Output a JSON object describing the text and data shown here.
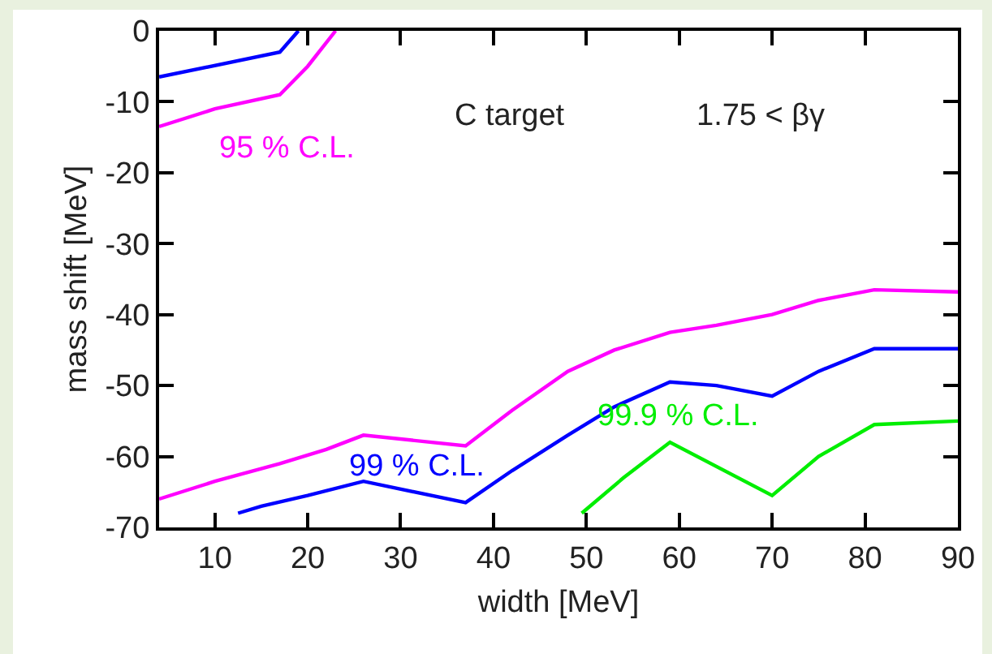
{
  "chart_data": {
    "type": "line",
    "xlabel": "width [MeV]",
    "ylabel": "mass shift [MeV]",
    "xlim": [
      4,
      90
    ],
    "xticks": [
      10,
      20,
      30,
      40,
      50,
      60,
      70,
      80,
      90
    ],
    "ylim": [
      -70,
      0
    ],
    "yticks": [
      -70,
      -60,
      -50,
      -40,
      -30,
      -20,
      -10,
      0
    ],
    "grid": false,
    "marker": "none",
    "line_style": "solid",
    "series": [
      {
        "name": "95 % C.L.",
        "color": "#ff00ff",
        "x": [
          4,
          10,
          17,
          20,
          23
        ],
        "values": [
          -13.5,
          -11,
          -9,
          -5,
          0
        ]
      },
      {
        "color": "#ff00ff",
        "x": [
          4,
          10,
          17,
          22,
          26,
          37,
          42,
          48,
          53,
          59,
          64,
          70,
          75,
          81,
          90
        ],
        "values": [
          -66,
          -63.5,
          -61,
          -59,
          -57,
          -58.5,
          -53.5,
          -48,
          -45,
          -42.5,
          -41.5,
          -40,
          -38,
          -36.5,
          -36.8
        ]
      },
      {
        "color": "#0000ff",
        "x": [
          4,
          17,
          19
        ],
        "values": [
          -6.5,
          -3,
          0
        ]
      },
      {
        "name": "99 % C.L.",
        "color": "#0000ff",
        "x": [
          12.5,
          15,
          20,
          26,
          37,
          42,
          48,
          53,
          59,
          64,
          70,
          75,
          81,
          90
        ],
        "values": [
          -68,
          -67,
          -65.5,
          -63.5,
          -66.5,
          -62,
          -57,
          -53,
          -49.5,
          -50,
          -51.5,
          -48,
          -44.8,
          -44.8
        ]
      },
      {
        "name": "99.9 % C.L.",
        "color": "#00ee00",
        "x": [
          49.5,
          54,
          59,
          70,
          75,
          81,
          90
        ],
        "values": [
          -68,
          -63,
          -58,
          -65.5,
          -60,
          -55.5,
          -55
        ]
      }
    ],
    "annotations": [
      "C target",
      "1.75 < βγ"
    ]
  }
}
